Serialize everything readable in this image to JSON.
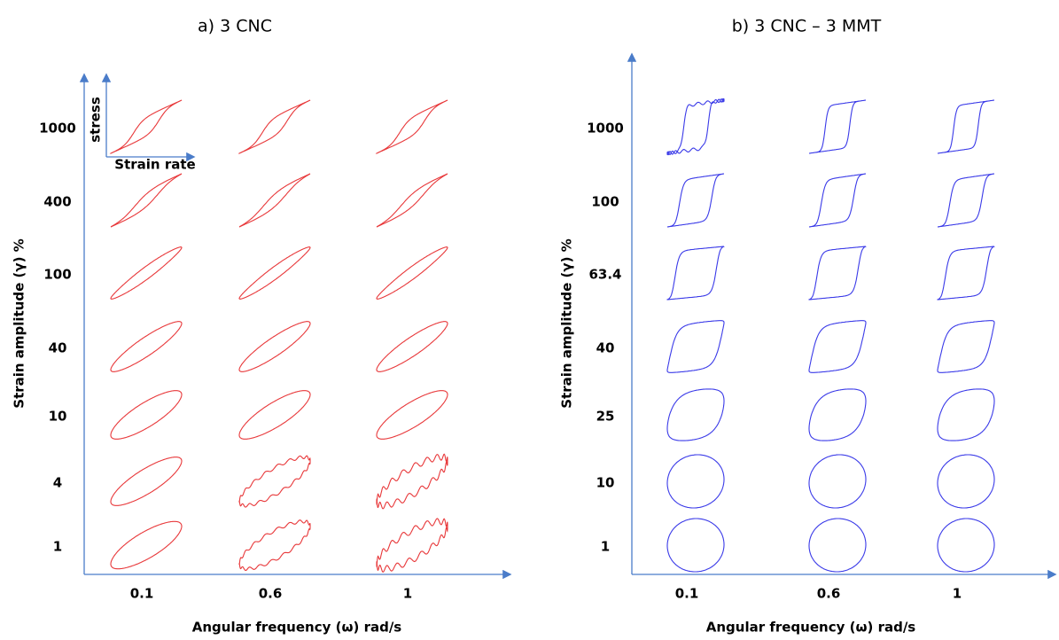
{
  "panels": [
    {
      "title": "a)  3 CNC",
      "y_label": "Strain amplitude (γ) %",
      "x_label": "Angular frequency (ω) rad/s",
      "rows": [
        "1000",
        "400",
        "100",
        "40",
        "10",
        "4",
        "1"
      ],
      "cols": [
        "0.1",
        "0.6",
        "1"
      ],
      "inset": {
        "y": "stress",
        "x": "Strain rate"
      }
    },
    {
      "title": "b)  3 CNC – 3 MMT",
      "y_label": "Strain amplitude (γ) %",
      "x_label": "Angular frequency (ω) rad/s",
      "rows": [
        "1000",
        "100",
        "63.4",
        "40",
        "25",
        "10",
        "1"
      ],
      "cols": [
        "0.1",
        "0.6",
        "1"
      ]
    }
  ]
}
